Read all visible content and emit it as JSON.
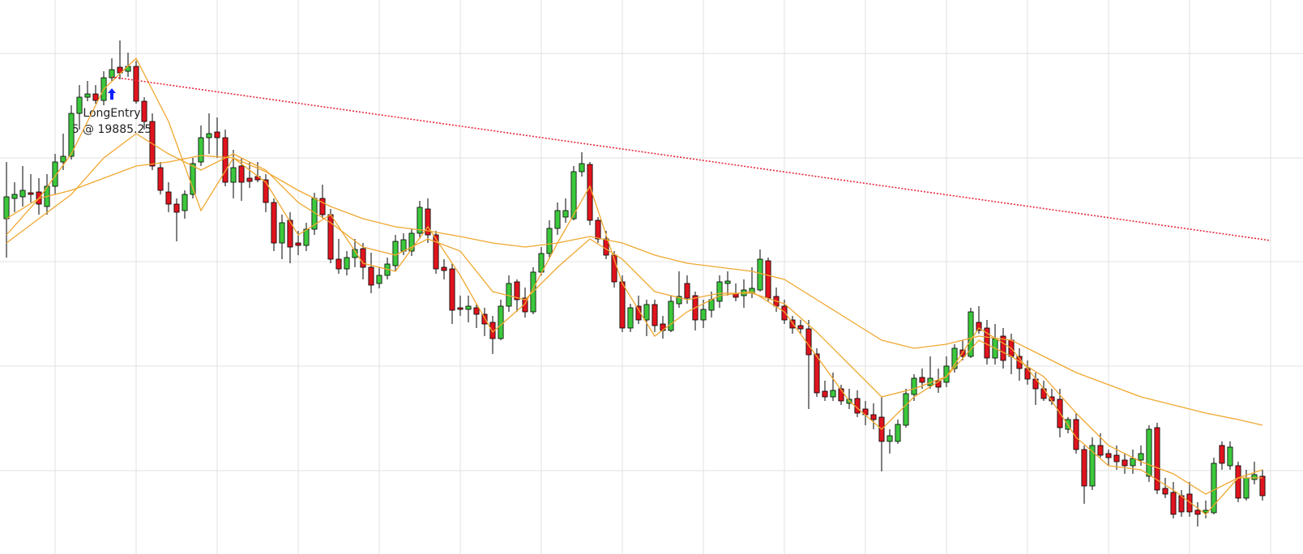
{
  "chart_data": {
    "type": "candlestick",
    "xlim": [
      -0.8,
      160
    ],
    "ylim": [
      684,
      0
    ],
    "xticks": [
      6,
      16,
      26,
      36,
      46,
      56,
      66,
      76,
      86,
      96,
      106,
      116,
      126,
      136,
      146,
      156
    ],
    "yticks": [
      66,
      195,
      323,
      452,
      581
    ],
    "grid": true,
    "up_color": "#3cc83c",
    "down_color": "#e0141e",
    "ohlc": [
      [
        270,
        200,
        318,
        243
      ],
      [
        245,
        225,
        262,
        240
      ],
      [
        243,
        205,
        255,
        235
      ],
      [
        238,
        215,
        250,
        240
      ],
      [
        237,
        220,
        265,
        252
      ],
      [
        255,
        215,
        265,
        230
      ],
      [
        230,
        190,
        240,
        200
      ],
      [
        200,
        165,
        210,
        193
      ],
      [
        193,
        130,
        197,
        140
      ],
      [
        140,
        105,
        160,
        120
      ],
      [
        120,
        100,
        125,
        116
      ],
      [
        116,
        105,
        128,
        124
      ],
      [
        124,
        88,
        130,
        96
      ],
      [
        96,
        72,
        100,
        86
      ],
      [
        83,
        50,
        98,
        90
      ],
      [
        88,
        65,
        95,
        82
      ],
      [
        82,
        75,
        128,
        125
      ],
      [
        125,
        120,
        160,
        150
      ],
      [
        150,
        140,
        210,
        205
      ],
      [
        207,
        200,
        240,
        235
      ],
      [
        237,
        225,
        262,
        252
      ],
      [
        252,
        245,
        298,
        262
      ],
      [
        260,
        235,
        270,
        240
      ],
      [
        240,
        195,
        245,
        202
      ],
      [
        200,
        155,
        205,
        170
      ],
      [
        170,
        140,
        190,
        165
      ],
      [
        163,
        145,
        195,
        170
      ],
      [
        170,
        160,
        230,
        225
      ],
      [
        225,
        185,
        245,
        207
      ],
      [
        205,
        195,
        248,
        225
      ],
      [
        220,
        200,
        232,
        224
      ],
      [
        218,
        200,
        225,
        222
      ],
      [
        222,
        215,
        262,
        250
      ],
      [
        250,
        245,
        310,
        300
      ],
      [
        300,
        265,
        320,
        275
      ],
      [
        272,
        262,
        325,
        305
      ],
      [
        300,
        285,
        315,
        303
      ],
      [
        303,
        275,
        310,
        283
      ],
      [
        283,
        238,
        290,
        245
      ],
      [
        245,
        228,
        270,
        265
      ],
      [
        265,
        258,
        325,
        320
      ],
      [
        320,
        295,
        338,
        332
      ],
      [
        332,
        310,
        340,
        318
      ],
      [
        318,
        295,
        330,
        308
      ],
      [
        307,
        300,
        345,
        330
      ],
      [
        330,
        312,
        362,
        352
      ],
      [
        350,
        330,
        356,
        340
      ],
      [
        340,
        318,
        345,
        326
      ],
      [
        328,
        290,
        335,
        298
      ],
      [
        310,
        288,
        315,
        296
      ],
      [
        310,
        282,
        316,
        288
      ],
      [
        288,
        248,
        295,
        256
      ],
      [
        258,
        245,
        300,
        290
      ],
      [
        290,
        285,
        338,
        332
      ],
      [
        330,
        320,
        345,
        334
      ],
      [
        332,
        325,
        400,
        383
      ],
      [
        380,
        365,
        390,
        382
      ],
      [
        382,
        365,
        398,
        378
      ],
      [
        380,
        375,
        405,
        388
      ],
      [
        388,
        380,
        415,
        400
      ],
      [
        398,
        390,
        437,
        418
      ],
      [
        418,
        370,
        420,
        378
      ],
      [
        378,
        340,
        385,
        350
      ],
      [
        348,
        345,
        385,
        370
      ],
      [
        368,
        355,
        392,
        385
      ],
      [
        385,
        330,
        388,
        336
      ],
      [
        336,
        305,
        340,
        313
      ],
      [
        313,
        272,
        320,
        282
      ],
      [
        282,
        250,
        290,
        260
      ],
      [
        268,
        245,
        275,
        260
      ],
      [
        270,
        205,
        272,
        212
      ],
      [
        212,
        188,
        218,
        202
      ],
      [
        203,
        200,
        278,
        272
      ],
      [
        272,
        268,
        300,
        295
      ],
      [
        295,
        285,
        320,
        315
      ],
      [
        315,
        310,
        355,
        348
      ],
      [
        348,
        340,
        410,
        405
      ],
      [
        405,
        375,
        410,
        380
      ],
      [
        378,
        365,
        400,
        395
      ],
      [
        395,
        370,
        415,
        376
      ],
      [
        376,
        370,
        410,
        402
      ],
      [
        400,
        390,
        418,
        408
      ],
      [
        408,
        365,
        410,
        372
      ],
      [
        375,
        335,
        380,
        366
      ],
      [
        350,
        340,
        375,
        368
      ],
      [
        365,
        360,
        408,
        395
      ],
      [
        395,
        370,
        405,
        382
      ],
      [
        383,
        360,
        392,
        370
      ],
      [
        372,
        340,
        380,
        348
      ],
      [
        350,
        335,
        365,
        347
      ],
      [
        362,
        350,
        372,
        367
      ],
      [
        365,
        345,
        380,
        358
      ],
      [
        362,
        330,
        368,
        356
      ],
      [
        358,
        308,
        360,
        320
      ],
      [
        322,
        318,
        372,
        368
      ],
      [
        366,
        355,
        385,
        378
      ],
      [
        378,
        370,
        400,
        395
      ],
      [
        395,
        390,
        412,
        405
      ],
      [
        402,
        395,
        412,
        406
      ],
      [
        406,
        395,
        505,
        438
      ],
      [
        437,
        430,
        490,
        485
      ],
      [
        483,
        470,
        495,
        490
      ],
      [
        490,
        460,
        495,
        482
      ],
      [
        480,
        475,
        500,
        495
      ],
      [
        498,
        480,
        505,
        493
      ],
      [
        492,
        482,
        515,
        510
      ],
      [
        505,
        495,
        525,
        512
      ],
      [
        512,
        498,
        530,
        518
      ],
      [
        515,
        490,
        582,
        545
      ],
      [
        545,
        530,
        560,
        538
      ],
      [
        545,
        518,
        548,
        524
      ],
      [
        525,
        480,
        528,
        486
      ],
      [
        487,
        462,
        495,
        467
      ],
      [
        466,
        455,
        480,
        472
      ],
      [
        476,
        440,
        480,
        467
      ],
      [
        470,
        455,
        485,
        478
      ],
      [
        472,
        440,
        478,
        452
      ],
      [
        455,
        425,
        460,
        430
      ],
      [
        432,
        420,
        445,
        440
      ],
      [
        440,
        380,
        442,
        385
      ],
      [
        398,
        378,
        412,
        408
      ],
      [
        405,
        395,
        450,
        442
      ],
      [
        442,
        400,
        450,
        418
      ],
      [
        415,
        405,
        455,
        445
      ],
      [
        420,
        412,
        462,
        440
      ],
      [
        440,
        430,
        470,
        455
      ],
      [
        455,
        445,
        475,
        468
      ],
      [
        468,
        460,
        500,
        480
      ],
      [
        480,
        470,
        495,
        492
      ],
      [
        490,
        480,
        500,
        495
      ],
      [
        493,
        480,
        540,
        528
      ],
      [
        530,
        515,
        535,
        518
      ],
      [
        518,
        510,
        560,
        555
      ],
      [
        555,
        550,
        622,
        600
      ],
      [
        600,
        540,
        605,
        550
      ],
      [
        550,
        535,
        565,
        562
      ],
      [
        560,
        555,
        575,
        565
      ],
      [
        562,
        550,
        580,
        570
      ],
      [
        568,
        560,
        585,
        575
      ],
      [
        575,
        555,
        585,
        566
      ],
      [
        568,
        550,
        575,
        560
      ],
      [
        588,
        525,
        595,
        530
      ],
      [
        528,
        522,
        610,
        605
      ],
      [
        603,
        590,
        615,
        610
      ],
      [
        608,
        595,
        640,
        635
      ],
      [
        612,
        605,
        638,
        632
      ],
      [
        610,
        595,
        638,
        632
      ],
      [
        630,
        620,
        650,
        635
      ],
      [
        633,
        618,
        640,
        630
      ],
      [
        633,
        565,
        635,
        572
      ],
      [
        550,
        545,
        580,
        572
      ],
      [
        575,
        545,
        580,
        552
      ],
      [
        575,
        570,
        620,
        615
      ],
      [
        615,
        580,
        618,
        590
      ],
      [
        592,
        570,
        598,
        586
      ],
      [
        588,
        580,
        618,
        612
      ]
    ],
    "ma_x": [
      0,
      4,
      8,
      12,
      16,
      20,
      24,
      28,
      32,
      36,
      40,
      44,
      48,
      52,
      56,
      60,
      64,
      68,
      72,
      76,
      80,
      84,
      88,
      92,
      96,
      100,
      104,
      108,
      112,
      116,
      120,
      124,
      128,
      132,
      136,
      140,
      144,
      148,
      152,
      155
    ],
    "series": [
      {
        "color": "#f0a830",
        "values": [
          290,
          245,
          190,
          110,
          72,
          150,
          260,
          195,
          225,
          290,
          265,
          325,
          335,
          280,
          340,
          410,
          375,
          300,
          230,
          350,
          415,
          385,
          365,
          360,
          385,
          440,
          495,
          530,
          490,
          465,
          405,
          430,
          480,
          540,
          575,
          580,
          605,
          635,
          590,
          590
        ]
      },
      {
        "color": "#f0a830",
        "values": [
          300,
          270,
          240,
          195,
          165,
          190,
          210,
          190,
          210,
          250,
          275,
          305,
          315,
          295,
          310,
          360,
          370,
          330,
          295,
          320,
          360,
          370,
          362,
          362,
          375,
          410,
          450,
          490,
          480,
          465,
          420,
          440,
          465,
          510,
          550,
          570,
          585,
          610,
          590,
          580
        ]
      },
      {
        "color": "#f0a830",
        "values": [
          270,
          245,
          235,
          220,
          205,
          200,
          192,
          195,
          212,
          235,
          255,
          270,
          280,
          285,
          292,
          300,
          305,
          300,
          292,
          300,
          315,
          325,
          330,
          335,
          345,
          370,
          395,
          420,
          430,
          425,
          415,
          420,
          440,
          460,
          475,
          490,
          500,
          510,
          518,
          525
        ]
      }
    ],
    "trendline": {
      "color": "#e8283c",
      "x": [
        13,
        156
      ],
      "y": [
        95,
        297
      ]
    },
    "entry": {
      "x": 13,
      "y": 117,
      "label": "LongEntry",
      "detail": "5 @ 19885.25"
    }
  }
}
